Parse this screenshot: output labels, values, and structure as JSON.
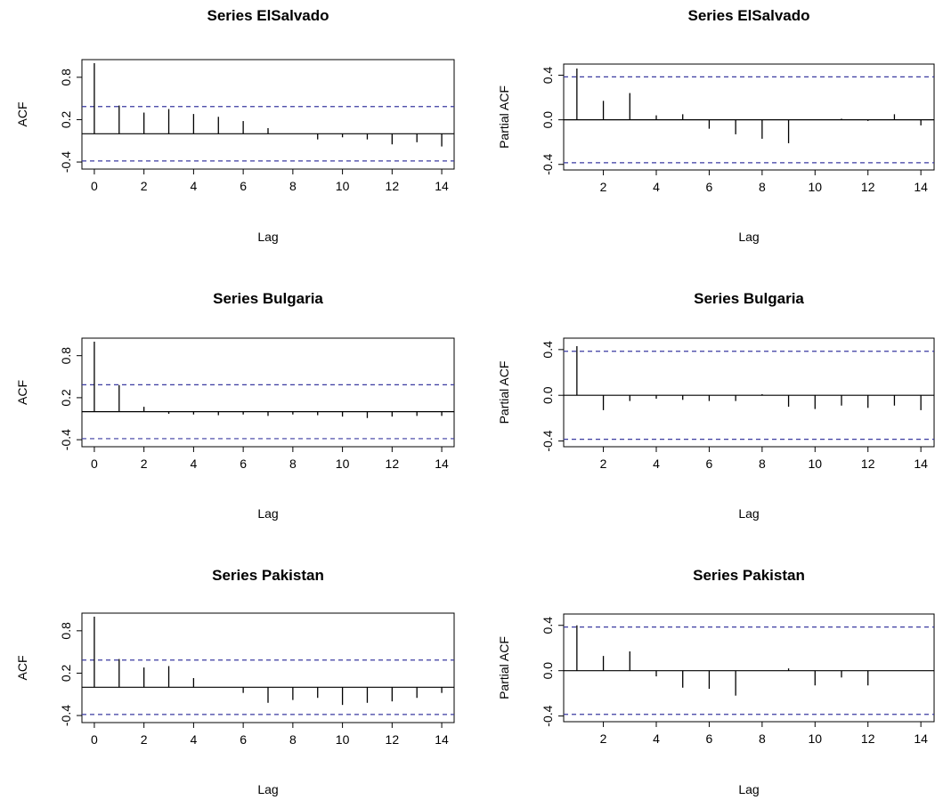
{
  "chart_data": [
    {
      "type": "bar",
      "kind": "acf",
      "title": "Series ElSalvado",
      "xlabel": "Lag",
      "ylabel": "ACF",
      "xlim": [
        -0.5,
        14.5
      ],
      "ylim": [
        -0.5,
        1.05
      ],
      "x_ticks": [
        0,
        2,
        4,
        6,
        8,
        10,
        12,
        14
      ],
      "y_ticks": [
        -0.4,
        0.2,
        0.8
      ],
      "ci": 0.385,
      "colors": {
        "ci": "#3a3aa0",
        "line": "#000000"
      },
      "x": [
        0,
        1,
        2,
        3,
        4,
        5,
        6,
        7,
        8,
        9,
        10,
        11,
        12,
        13,
        14
      ],
      "values": [
        1.0,
        0.4,
        0.3,
        0.35,
        0.28,
        0.24,
        0.18,
        0.08,
        0.0,
        -0.08,
        -0.05,
        -0.08,
        -0.15,
        -0.12,
        -0.18
      ]
    },
    {
      "type": "bar",
      "kind": "pacf",
      "title": "Series ElSalvado",
      "xlabel": "Lag",
      "ylabel": "Partial ACF",
      "xlim": [
        0.5,
        14.5
      ],
      "ylim": [
        -0.45,
        0.5
      ],
      "x_ticks": [
        2,
        4,
        6,
        8,
        10,
        12,
        14
      ],
      "y_ticks": [
        -0.4,
        0.0,
        0.4
      ],
      "ci": 0.385,
      "colors": {
        "ci": "#3a3aa0",
        "line": "#000000"
      },
      "x": [
        1,
        2,
        3,
        4,
        5,
        6,
        7,
        8,
        9,
        10,
        11,
        12,
        13,
        14
      ],
      "values": [
        0.46,
        0.17,
        0.24,
        0.04,
        0.05,
        -0.08,
        -0.13,
        -0.17,
        -0.21,
        0.0,
        0.01,
        -0.01,
        0.05,
        -0.05
      ]
    },
    {
      "type": "bar",
      "kind": "acf",
      "title": "Series Bulgaria",
      "xlabel": "Lag",
      "ylabel": "ACF",
      "xlim": [
        -0.5,
        14.5
      ],
      "ylim": [
        -0.5,
        1.05
      ],
      "x_ticks": [
        0,
        2,
        4,
        6,
        8,
        10,
        12,
        14
      ],
      "y_ticks": [
        -0.4,
        0.2,
        0.8
      ],
      "ci": 0.385,
      "colors": {
        "ci": "#3a3aa0",
        "line": "#000000"
      },
      "x": [
        0,
        1,
        2,
        3,
        4,
        5,
        6,
        7,
        8,
        9,
        10,
        11,
        12,
        13,
        14
      ],
      "values": [
        1.0,
        0.38,
        0.07,
        -0.03,
        -0.04,
        -0.05,
        -0.04,
        -0.06,
        -0.04,
        -0.05,
        -0.07,
        -0.09,
        -0.07,
        -0.06,
        -0.06
      ]
    },
    {
      "type": "bar",
      "kind": "pacf",
      "title": "Series Bulgaria",
      "xlabel": "Lag",
      "ylabel": "Partial ACF",
      "xlim": [
        0.5,
        14.5
      ],
      "ylim": [
        -0.45,
        0.5
      ],
      "x_ticks": [
        2,
        4,
        6,
        8,
        10,
        12,
        14
      ],
      "y_ticks": [
        -0.4,
        0.0,
        0.4
      ],
      "ci": 0.385,
      "colors": {
        "ci": "#3a3aa0",
        "line": "#000000"
      },
      "x": [
        1,
        2,
        3,
        4,
        5,
        6,
        7,
        8,
        9,
        10,
        11,
        12,
        13,
        14
      ],
      "values": [
        0.43,
        -0.13,
        -0.05,
        -0.03,
        -0.04,
        -0.05,
        -0.05,
        0.01,
        -0.1,
        -0.12,
        -0.09,
        -0.11,
        -0.09,
        -0.13
      ]
    },
    {
      "type": "bar",
      "kind": "acf",
      "title": "Series Pakistan",
      "xlabel": "Lag",
      "ylabel": "ACF",
      "xlim": [
        -0.5,
        14.5
      ],
      "ylim": [
        -0.5,
        1.05
      ],
      "x_ticks": [
        0,
        2,
        4,
        6,
        8,
        10,
        12,
        14
      ],
      "y_ticks": [
        -0.4,
        0.2,
        0.8
      ],
      "ci": 0.385,
      "colors": {
        "ci": "#3a3aa0",
        "line": "#000000"
      },
      "x": [
        0,
        1,
        2,
        3,
        4,
        5,
        6,
        7,
        8,
        9,
        10,
        11,
        12,
        13,
        14
      ],
      "values": [
        1.0,
        0.4,
        0.28,
        0.3,
        0.13,
        0.0,
        -0.08,
        -0.22,
        -0.18,
        -0.15,
        -0.25,
        -0.22,
        -0.2,
        -0.15,
        -0.08
      ]
    },
    {
      "type": "bar",
      "kind": "pacf",
      "title": "Series Pakistan",
      "xlabel": "Lag",
      "ylabel": "Partial ACF",
      "xlim": [
        0.5,
        14.5
      ],
      "ylim": [
        -0.45,
        0.5
      ],
      "x_ticks": [
        2,
        4,
        6,
        8,
        10,
        12,
        14
      ],
      "y_ticks": [
        -0.4,
        0.0,
        0.4
      ],
      "ci": 0.385,
      "colors": {
        "ci": "#3a3aa0",
        "line": "#000000"
      },
      "x": [
        1,
        2,
        3,
        4,
        5,
        6,
        7,
        8,
        9,
        10,
        11,
        12,
        13,
        14
      ],
      "values": [
        0.4,
        0.13,
        0.17,
        -0.05,
        -0.15,
        -0.16,
        -0.22,
        0.0,
        0.02,
        -0.13,
        -0.06,
        -0.13,
        0.0,
        0.0
      ]
    }
  ]
}
